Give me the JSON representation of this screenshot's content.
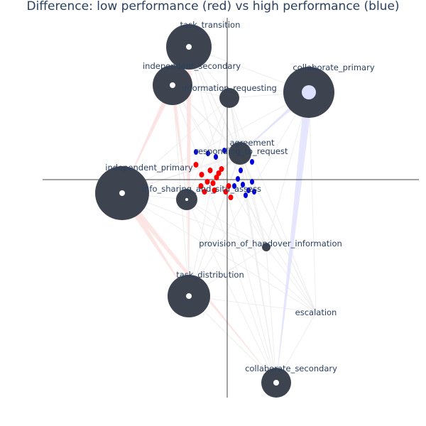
{
  "title": "Difference: low performance (red) vs high performance (blue)",
  "colors": {
    "node": "#3d4450",
    "low": "#ff0000",
    "high": "#0000dd",
    "edge_low": "#fde0e0",
    "edge_high": "#e0e0ff",
    "edge_neutral": "#eeeeee",
    "axis": "#444444"
  },
  "nodes": [
    {
      "id": "task_transition",
      "label": "task_transition"
    },
    {
      "id": "independent_secondary",
      "label": "independent_secondary"
    },
    {
      "id": "information_requesting",
      "label": "information_requesting"
    },
    {
      "id": "collaborate_primary",
      "label": "collaborate_primary"
    },
    {
      "id": "agreement",
      "label": "agreement"
    },
    {
      "id": "responding_to_request",
      "label": "responding_to_request"
    },
    {
      "id": "independent_primary",
      "label": "independent_primary"
    },
    {
      "id": "info_sharing_and_situ_assess",
      "label": "info_sharing_and_situ_assess"
    },
    {
      "id": "provision_of_handover_information",
      "label": "provision_of_handover_information"
    },
    {
      "id": "task_distribution",
      "label": "task_distribution"
    },
    {
      "id": "escalation",
      "label": "escalation"
    },
    {
      "id": "collaborate_secondary",
      "label": "collaborate_secondary"
    }
  ]
}
